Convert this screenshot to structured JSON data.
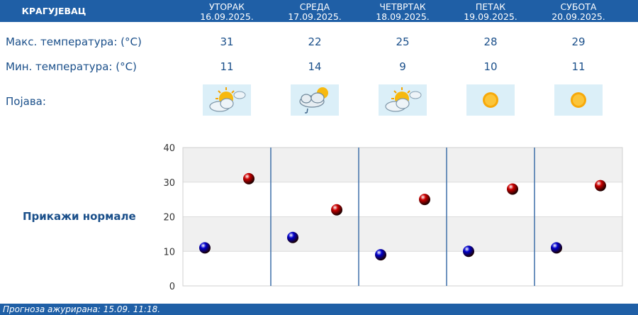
{
  "header": {
    "city": "КРАГУЈЕВАЦ",
    "days": [
      {
        "name": "УТОРАК",
        "date": "16.09.2025."
      },
      {
        "name": "СРЕДА",
        "date": "17.09.2025."
      },
      {
        "name": "ЧЕТВРТАК",
        "date": "18.09.2025."
      },
      {
        "name": "ПЕТАК",
        "date": "19.09.2025."
      },
      {
        "name": "СУБОТА",
        "date": "20.09.2025."
      }
    ]
  },
  "rows": {
    "max_label": "Макс. температура: (°C)",
    "min_label": "Мин. температура: (°C)",
    "weather_label": "Појава:",
    "max": [
      "31",
      "22",
      "25",
      "28",
      "29"
    ],
    "min": [
      "11",
      "14",
      "9",
      "10",
      "11"
    ],
    "weather_icons": [
      "sun-cloud-icon",
      "cloud-rain-sun-icon",
      "sun-cloud-icon",
      "sun-icon",
      "sun-icon"
    ]
  },
  "normals_link": "Прикажи нормале",
  "footer": "Прогноза ажурирана:  15.09.  11:18.",
  "colors": {
    "header_bg": "#1f5fa6",
    "max_dot": "#cc0000",
    "min_dot": "#0000cc",
    "text": "#1a4f8a"
  },
  "chart_data": {
    "type": "scatter",
    "categories": [
      "УТОРАК",
      "СРЕДА",
      "ЧЕТВРТАК",
      "ПЕТАК",
      "СУБОТА"
    ],
    "series": [
      {
        "values": [
          11,
          14,
          9,
          10,
          11
        ],
        "color": "#0000cc"
      },
      {
        "values": [
          31,
          22,
          25,
          28,
          29
        ],
        "color": "#cc0000"
      }
    ],
    "ylim": [
      0,
      40
    ],
    "yticks": [
      0,
      10,
      20,
      30,
      40
    ],
    "grid": true
  }
}
